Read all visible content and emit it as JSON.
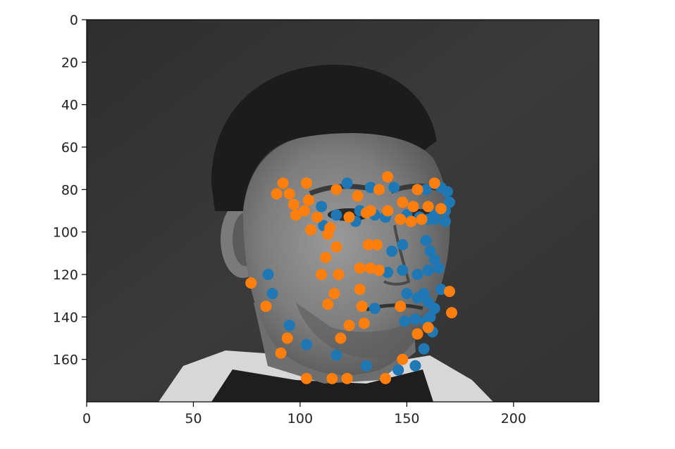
{
  "chart_data": {
    "type": "scatter",
    "title": "",
    "xlabel": "",
    "ylabel": "",
    "xlim": [
      0,
      240
    ],
    "ylim": [
      180,
      0
    ],
    "y_inverted": true,
    "background": "grayscale photograph of a man's face, head turned toward the right",
    "grid": false,
    "x_ticks": [
      0,
      50,
      100,
      150,
      200
    ],
    "y_ticks": [
      0,
      20,
      40,
      60,
      80,
      100,
      120,
      140,
      160
    ],
    "series": [
      {
        "color": "#1f77b4",
        "points": [
          [
            122,
            77
          ],
          [
            133,
            79
          ],
          [
            144,
            79
          ],
          [
            159,
            80
          ],
          [
            166,
            79
          ],
          [
            169,
            81
          ],
          [
            170,
            86
          ],
          [
            166,
            89
          ],
          [
            110,
            88
          ],
          [
            111,
            97
          ],
          [
            117,
            92
          ],
          [
            126,
            95
          ],
          [
            128,
            90
          ],
          [
            135,
            92
          ],
          [
            140,
            93
          ],
          [
            150,
            92
          ],
          [
            156,
            93
          ],
          [
            160,
            94
          ],
          [
            163,
            94
          ],
          [
            168,
            95
          ],
          [
            163,
            92
          ],
          [
            168,
            90
          ],
          [
            143,
            109
          ],
          [
            148,
            106
          ],
          [
            159,
            104
          ],
          [
            161,
            109
          ],
          [
            163,
            113
          ],
          [
            165,
            117
          ],
          [
            160,
            118
          ],
          [
            141,
            119
          ],
          [
            148,
            118
          ],
          [
            155,
            120
          ],
          [
            85,
            120
          ],
          [
            87,
            129
          ],
          [
            95,
            144
          ],
          [
            103,
            153
          ],
          [
            117,
            158
          ],
          [
            131,
            163
          ],
          [
            146,
            165
          ],
          [
            154,
            163
          ],
          [
            158,
            155
          ],
          [
            162,
            147
          ],
          [
            161,
            140
          ],
          [
            163,
            136
          ],
          [
            166,
            127
          ],
          [
            160,
            133
          ],
          [
            150,
            129
          ],
          [
            155,
            131
          ],
          [
            158,
            129
          ],
          [
            149,
            142
          ],
          [
            154,
            141
          ],
          [
            159,
            142
          ],
          [
            135,
            136
          ]
        ]
      },
      {
        "color": "#ff7f0e",
        "points": [
          [
            92,
            77
          ],
          [
            103,
            77
          ],
          [
            95,
            82
          ],
          [
            89,
            82
          ],
          [
            97,
            87
          ],
          [
            102,
            90
          ],
          [
            98,
            92
          ],
          [
            104,
            85
          ],
          [
            108,
            93
          ],
          [
            105,
            99
          ],
          [
            113,
            101
          ],
          [
            114,
            98
          ],
          [
            117,
            80
          ],
          [
            123,
            93
          ],
          [
            127,
            83
          ],
          [
            131,
            91
          ],
          [
            133,
            90
          ],
          [
            137,
            80
          ],
          [
            141,
            74
          ],
          [
            141,
            90
          ],
          [
            148,
            86
          ],
          [
            153,
            88
          ],
          [
            147,
            94
          ],
          [
            152,
            95
          ],
          [
            155,
            80
          ],
          [
            160,
            88
          ],
          [
            157,
            94
          ],
          [
            163,
            77
          ],
          [
            166,
            89
          ],
          [
            117,
            107
          ],
          [
            112,
            112
          ],
          [
            132,
            106
          ],
          [
            136,
            106
          ],
          [
            128,
            117
          ],
          [
            133,
            117
          ],
          [
            137,
            118
          ],
          [
            110,
            120
          ],
          [
            118,
            120
          ],
          [
            116,
            129
          ],
          [
            113,
            134
          ],
          [
            128,
            127
          ],
          [
            129,
            135
          ],
          [
            130,
            143
          ],
          [
            123,
            144
          ],
          [
            119,
            150
          ],
          [
            147,
            135
          ],
          [
            160,
            145
          ],
          [
            155,
            148
          ],
          [
            77,
            124
          ],
          [
            84,
            135
          ],
          [
            94,
            150
          ],
          [
            91,
            157
          ],
          [
            103,
            169
          ],
          [
            115,
            169
          ],
          [
            122,
            169
          ],
          [
            140,
            169
          ],
          [
            148,
            160
          ],
          [
            170,
            128
          ],
          [
            171,
            138
          ]
        ]
      }
    ]
  }
}
